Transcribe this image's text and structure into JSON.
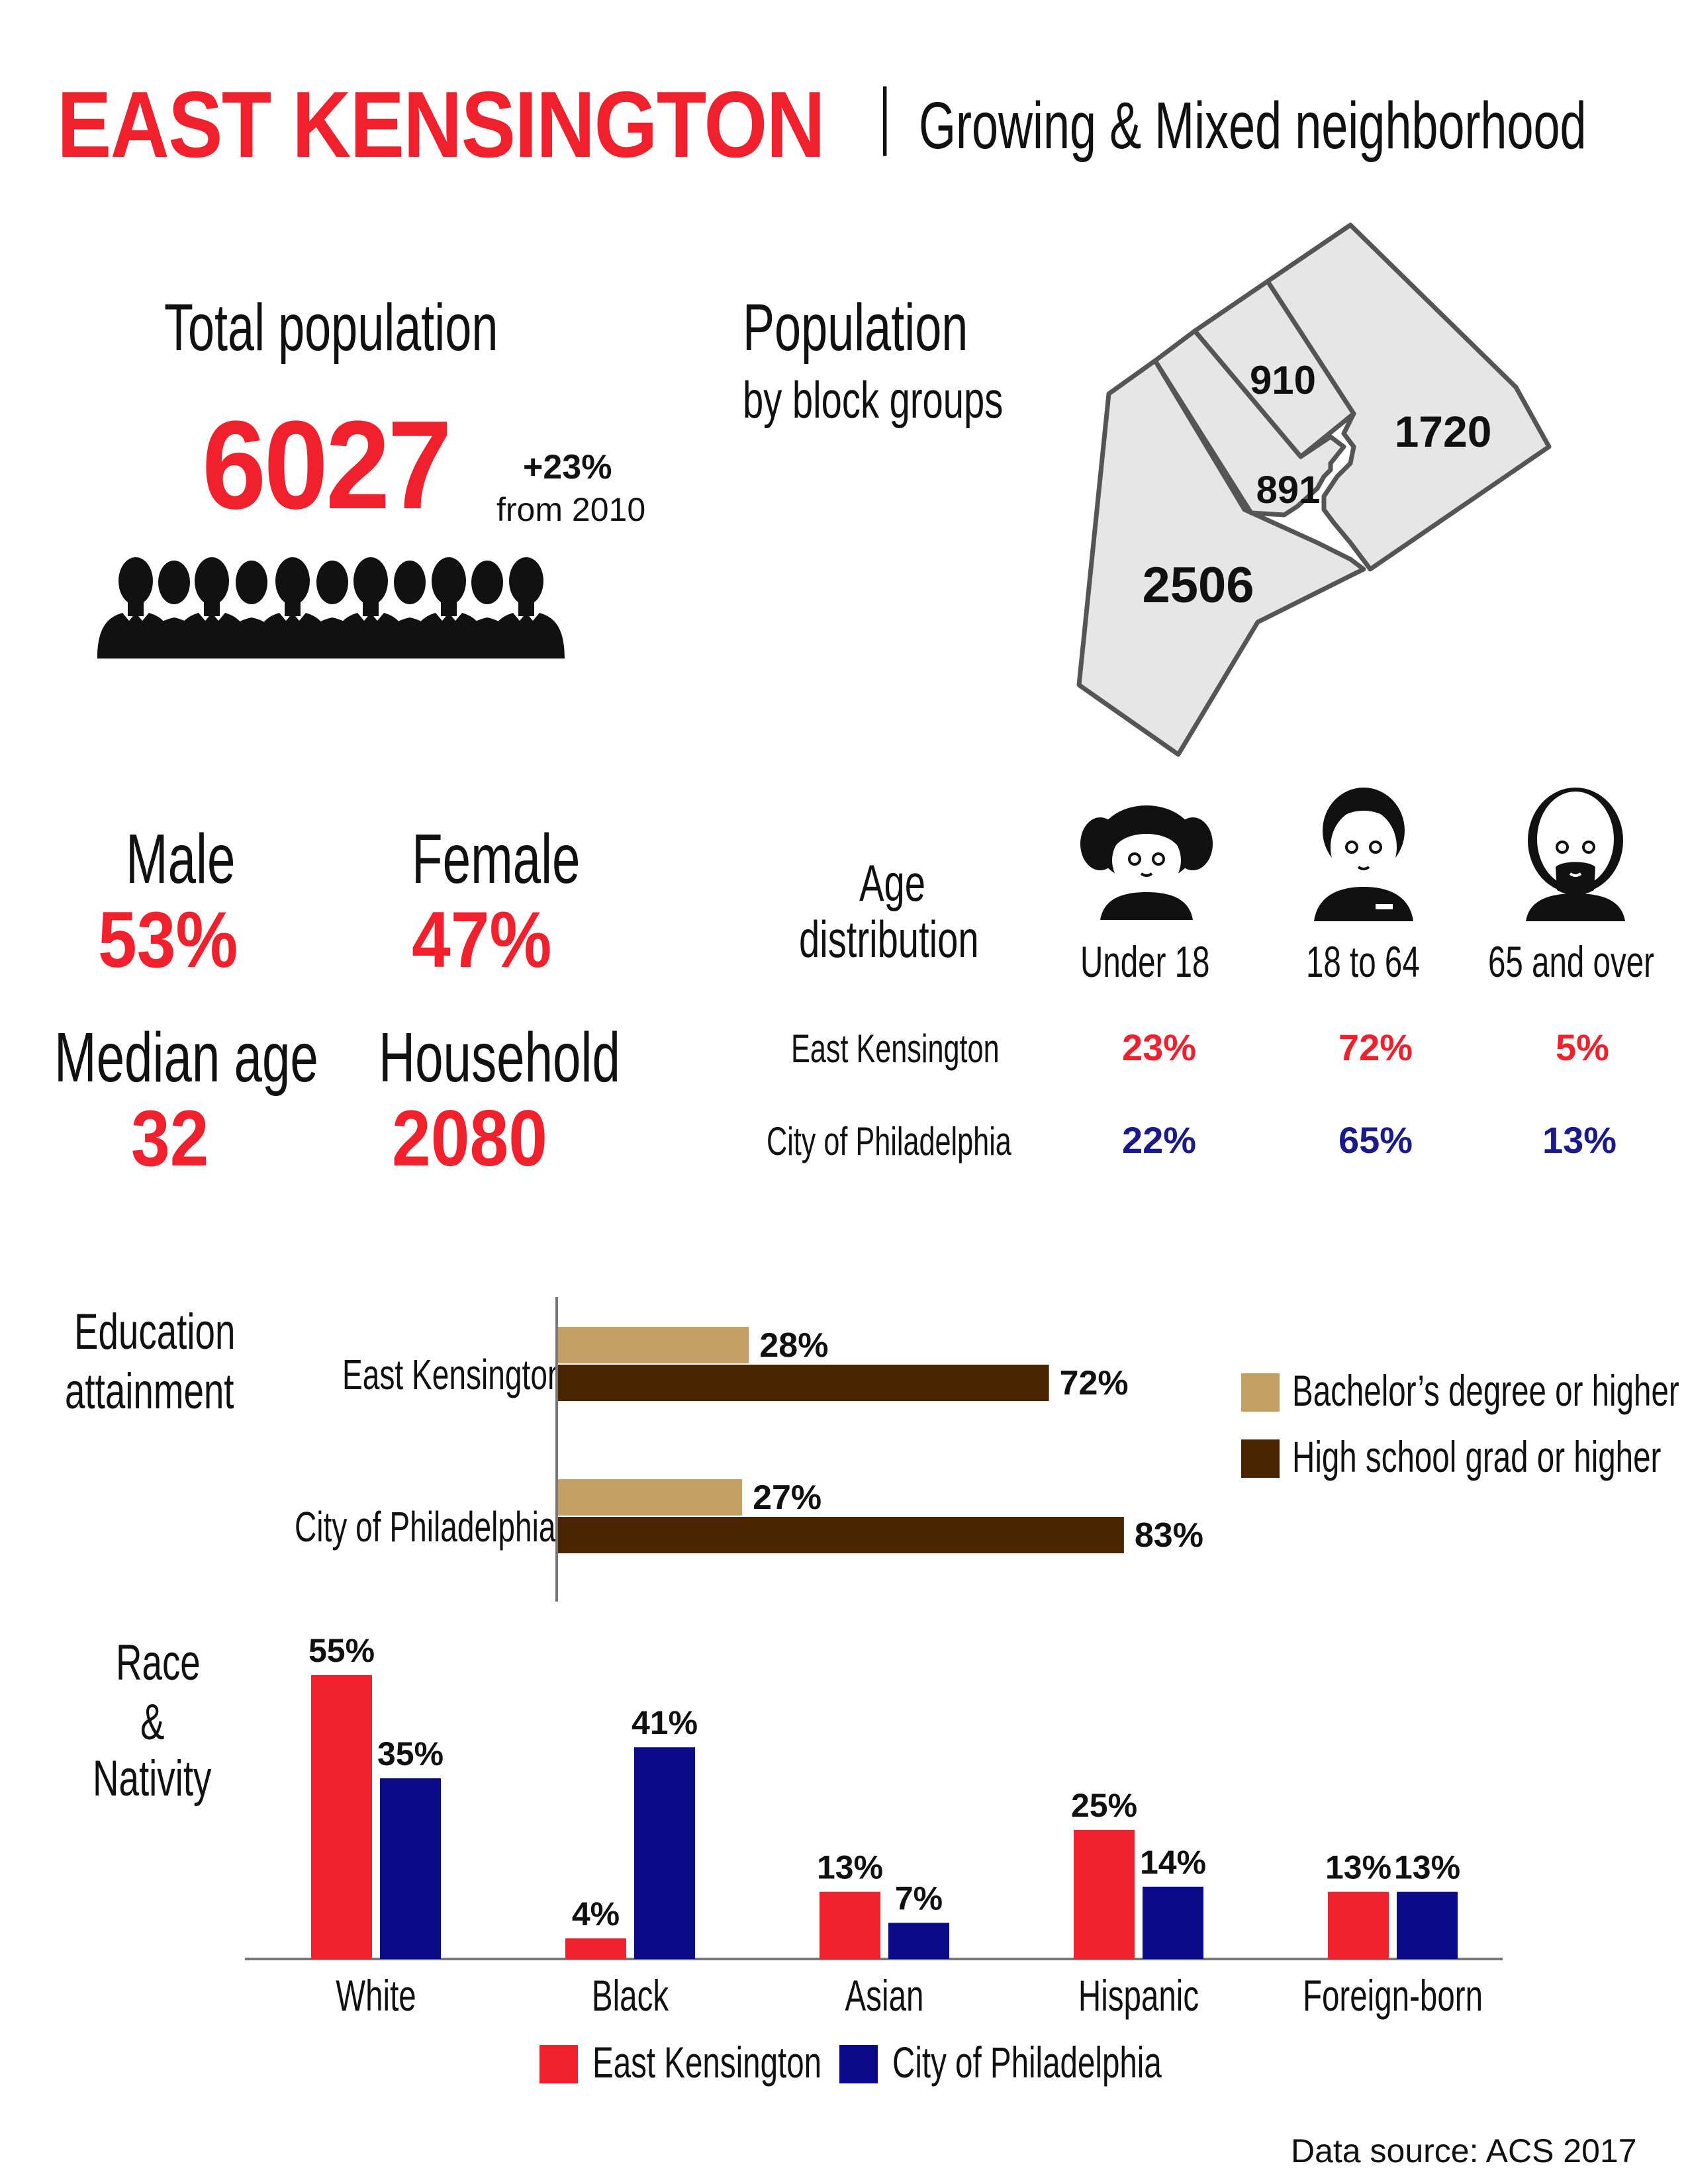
{
  "header": {
    "title": "EAST KENSINGTON",
    "separator": "|",
    "subtitle": "Growing & Mixed neighborhood"
  },
  "population": {
    "label": "Total population",
    "value": "6027",
    "change": "+23%",
    "change_note": "from 2010"
  },
  "block_groups": {
    "label_line1": "Population",
    "label_line2": "by block groups",
    "values": [
      "910",
      "1720",
      "891",
      "2506"
    ]
  },
  "demographics": {
    "male_label": "Male",
    "male_value": "53%",
    "female_label": "Female",
    "female_value": "47%",
    "median_age_label": "Median age",
    "median_age_value": "32",
    "household_label": "Household",
    "household_value": "2080"
  },
  "age": {
    "label_line1": "Age",
    "label_line2": "distribution",
    "columns": [
      "Under 18",
      "18 to 64",
      "65 and over"
    ],
    "rows": [
      {
        "name": "East Kensington",
        "values": [
          "23%",
          "72%",
          "5%"
        ]
      },
      {
        "name": "City of Philadelphia",
        "values": [
          "22%",
          "65%",
          "13%"
        ]
      }
    ]
  },
  "colors": {
    "red": "#f0202d",
    "navy": "#0a0a8a",
    "bachelor": "#c4a066",
    "highschool": "#4a2600",
    "map_fill": "#e6e6e6",
    "map_stroke": "#555555"
  },
  "footer": {
    "source": "Data source: ACS 2017"
  },
  "chart_data": [
    {
      "type": "bar",
      "orientation": "horizontal",
      "title": "Education attainment",
      "title_line1": "Education",
      "title_line2": "attainment",
      "categories": [
        "East Kensington",
        "City of Philadelphia"
      ],
      "series": [
        {
          "name": "Bachelor’s degree or higher",
          "values": [
            28,
            27
          ]
        },
        {
          "name": "High school grad or higher",
          "values": [
            72,
            83
          ]
        }
      ],
      "xlim": [
        0,
        100
      ],
      "legend": "right",
      "grid": false
    },
    {
      "type": "bar",
      "title": "Race & Nativity",
      "title_line1": "Race",
      "title_line2": "&",
      "title_line3": "Nativity",
      "categories": [
        "White",
        "Black",
        "Asian",
        "Hispanic",
        "Foreign-born"
      ],
      "series": [
        {
          "name": "East Kensington",
          "values": [
            55,
            4,
            13,
            25,
            13
          ]
        },
        {
          "name": "City of Philadelphia",
          "values": [
            35,
            41,
            7,
            14,
            13
          ]
        }
      ],
      "ylim": [
        0,
        60
      ],
      "legend": "bottom",
      "grid": false
    }
  ]
}
